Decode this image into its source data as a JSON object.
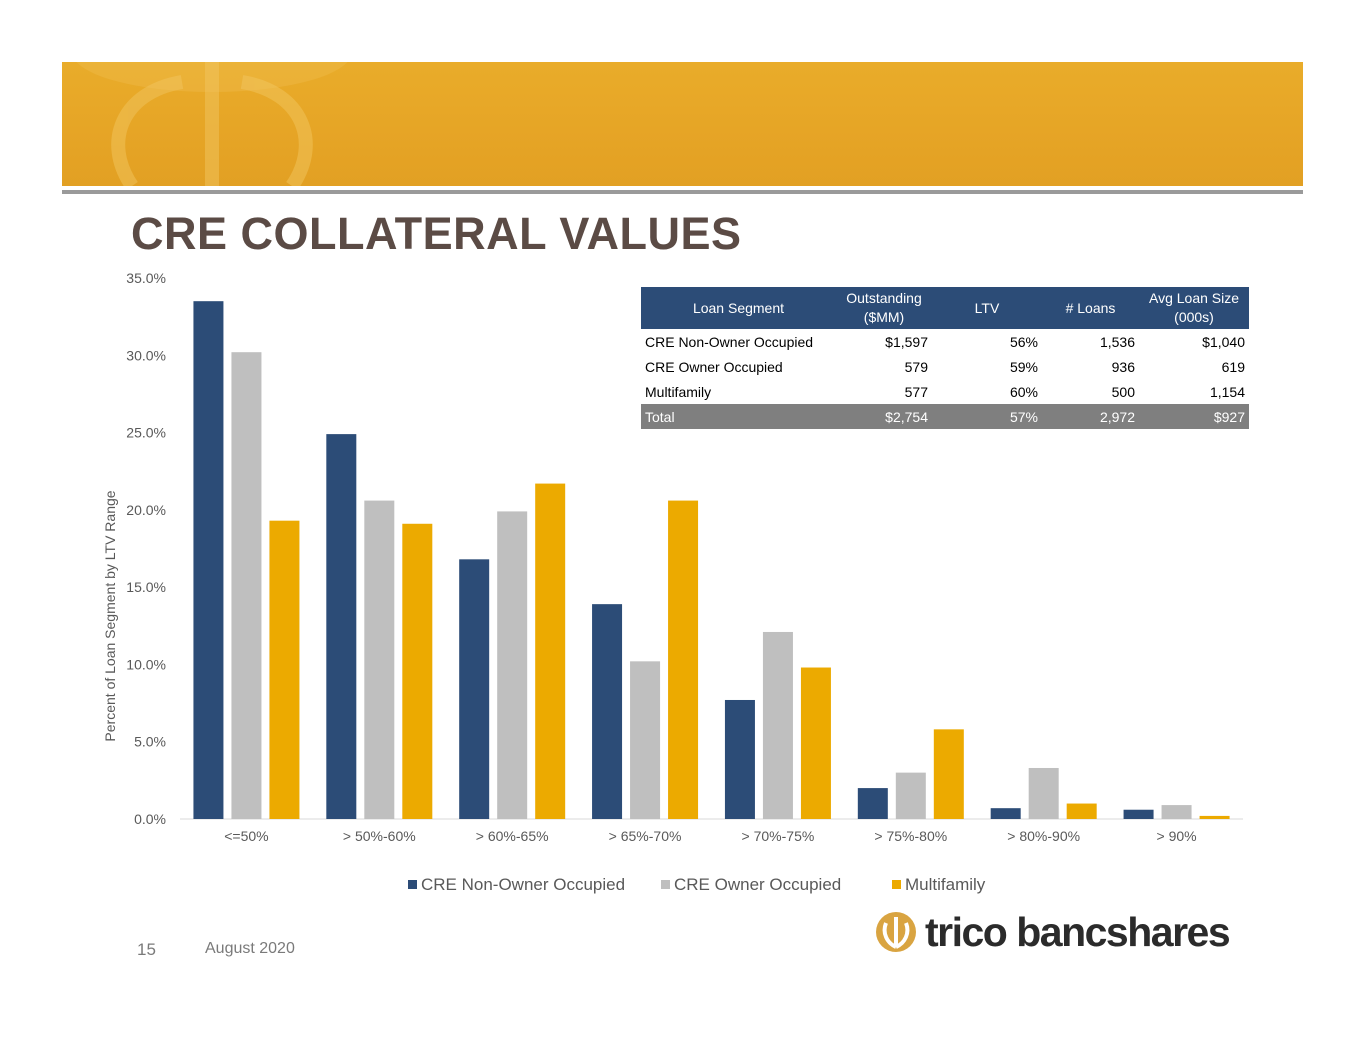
{
  "page": {
    "title": "CRE COLLATERAL VALUES",
    "page_number": "15",
    "date": "August 2020",
    "logo_text": "trico bancshares"
  },
  "colors": {
    "banner": "#e6a526",
    "title": "#5b4b45",
    "series_1": "#2c4c77",
    "series_2": "#bfbfbf",
    "series_3": "#ecaa00",
    "table_header": "#2c4c77",
    "table_total": "#7f7f7f"
  },
  "table": {
    "headers": [
      "Loan Segment",
      "Outstanding ($MM)",
      "LTV",
      "# Loans",
      "Avg Loan Size (000s)"
    ],
    "header_lines": [
      [
        "Loan Segment"
      ],
      [
        "Outstanding",
        "($MM)"
      ],
      [
        "LTV"
      ],
      [
        "# Loans"
      ],
      [
        "Avg Loan Size",
        "(000s)"
      ]
    ],
    "rows": [
      [
        "CRE Non-Owner Occupied",
        "$1,597",
        "56%",
        "1,536",
        "$1,040"
      ],
      [
        "CRE Owner Occupied",
        "579",
        "59%",
        "936",
        "619"
      ],
      [
        "Multifamily",
        "577",
        "60%",
        "500",
        "1,154"
      ]
    ],
    "total": [
      "Total",
      "$2,754",
      "57%",
      "2,972",
      "$927"
    ]
  },
  "chart_data": {
    "type": "bar",
    "title": "",
    "xlabel": "",
    "ylabel": "Percent of Loan Segment by LTV Range",
    "categories": [
      "<=50%",
      "> 50%-60%",
      "> 60%-65%",
      "> 65%-70%",
      "> 70%-75%",
      "> 75%-80%",
      "> 80%-90%",
      "> 90%"
    ],
    "series": [
      {
        "name": "CRE Non-Owner Occupied",
        "color": "#2c4c77",
        "values": [
          33.5,
          24.9,
          16.8,
          13.9,
          7.7,
          2.0,
          0.7,
          0.6
        ]
      },
      {
        "name": "CRE Owner Occupied",
        "color": "#bfbfbf",
        "values": [
          30.2,
          20.6,
          19.9,
          10.2,
          12.1,
          3.0,
          3.3,
          0.9
        ]
      },
      {
        "name": "Multifamily",
        "color": "#ecaa00",
        "values": [
          19.3,
          19.1,
          21.7,
          20.6,
          9.8,
          5.8,
          1.0,
          0.2
        ]
      }
    ],
    "ylim": [
      0,
      35
    ],
    "yticks": [
      0,
      5,
      10,
      15,
      20,
      25,
      30,
      35
    ],
    "ytick_labels": [
      "0.0%",
      "5.0%",
      "10.0%",
      "15.0%",
      "20.0%",
      "25.0%",
      "30.0%",
      "35.0%"
    ],
    "grid": false,
    "legend": "bottom"
  }
}
